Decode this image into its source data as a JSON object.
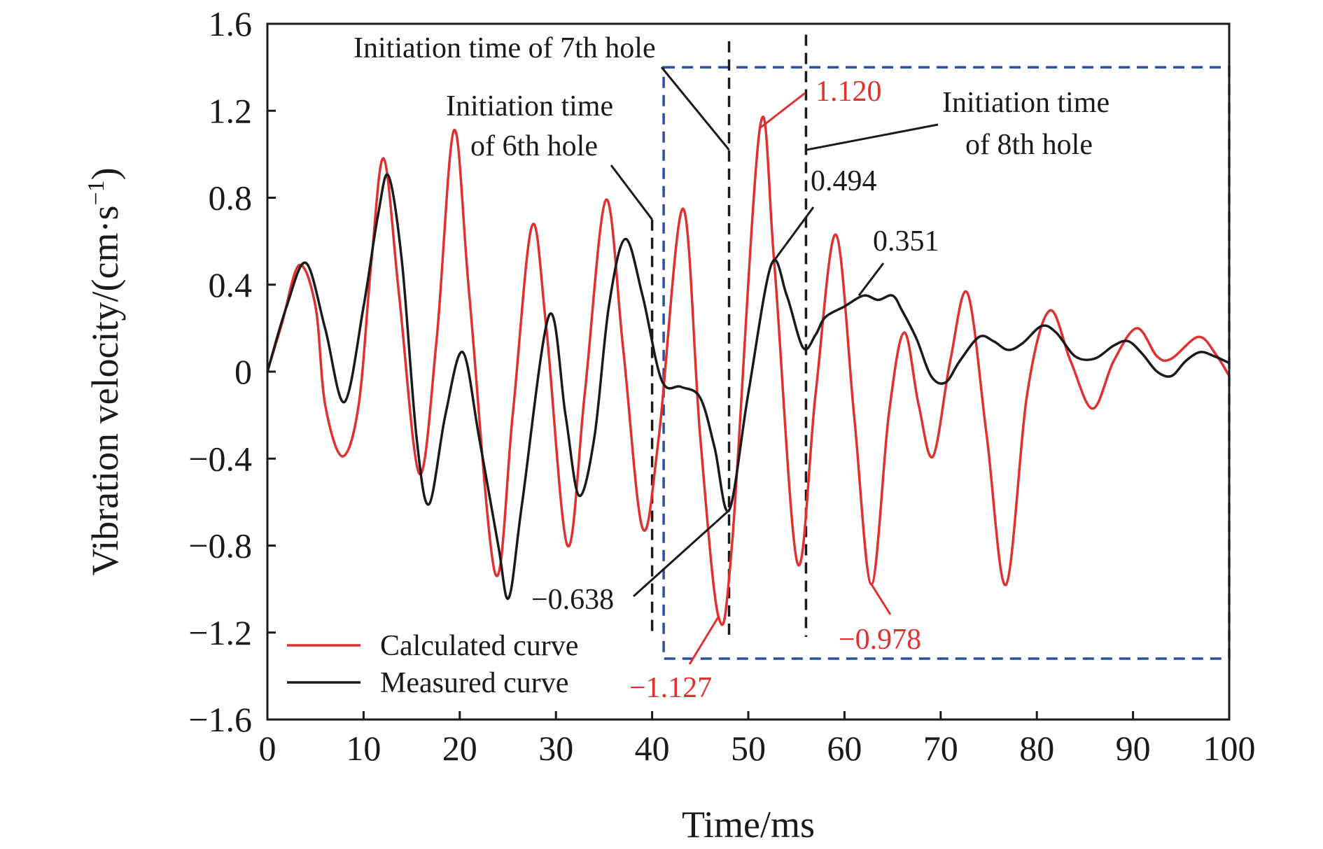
{
  "chart_data": {
    "type": "line",
    "xlabel": "Time/ms",
    "ylabel_main": "Vibration velocity/(cm·s",
    "ylabel_sup": "−1",
    "ylabel_close": ")",
    "xlim": [
      0,
      100
    ],
    "ylim": [
      -1.6,
      1.6
    ],
    "x_ticks": [
      0,
      10,
      20,
      30,
      40,
      50,
      60,
      70,
      80,
      90,
      100
    ],
    "x_tick_labels": [
      "0",
      "10",
      "20",
      "30",
      "40",
      "50",
      "60",
      "70",
      "80",
      "90",
      "100"
    ],
    "y_ticks": [
      1.6,
      1.2,
      0.8,
      0.4,
      0,
      -0.4,
      -0.8,
      -1.2,
      -1.6
    ],
    "y_tick_labels": [
      "1.6",
      "1.2",
      "0.8",
      "0.4",
      "0",
      "−0.4",
      "−0.8",
      "−1.2",
      "−1.6"
    ],
    "grid": false,
    "legend_position": "bottom-left",
    "series": [
      {
        "name": "Calculated curve",
        "color": "#e03030",
        "points": [
          [
            0,
            0
          ],
          [
            1.5,
            0.22
          ],
          [
            3.3,
            0.49
          ],
          [
            5,
            0.3
          ],
          [
            6,
            -0.15
          ],
          [
            7.8,
            -0.39
          ],
          [
            9.5,
            -0.15
          ],
          [
            10.8,
            0.5
          ],
          [
            12.1,
            0.98
          ],
          [
            13.7,
            0.35
          ],
          [
            15.8,
            -0.47
          ],
          [
            17.6,
            0.15
          ],
          [
            19.4,
            1.11
          ],
          [
            21,
            0.35
          ],
          [
            23.7,
            -0.93
          ],
          [
            25.5,
            -0.2
          ],
          [
            27.5,
            0.67
          ],
          [
            29,
            0.2
          ],
          [
            31.2,
            -0.8
          ],
          [
            33,
            -0.1
          ],
          [
            35.2,
            0.79
          ],
          [
            37,
            0.1
          ],
          [
            39,
            -0.72
          ],
          [
            40.7,
            -0.3
          ],
          [
            43.2,
            0.75
          ],
          [
            45,
            -0.3
          ],
          [
            46.9,
            -1.127
          ],
          [
            48.3,
            -0.8
          ],
          [
            51.2,
            1.12
          ],
          [
            52.7,
            0.5
          ],
          [
            55.1,
            -0.88
          ],
          [
            57,
            -0.1
          ],
          [
            59.1,
            0.63
          ],
          [
            61,
            -0.2
          ],
          [
            62.8,
            -0.978
          ],
          [
            64.6,
            -0.2
          ],
          [
            66.2,
            0.18
          ],
          [
            67.7,
            -0.15
          ],
          [
            69.2,
            -0.39
          ],
          [
            71,
            0.05
          ],
          [
            72.8,
            0.36
          ],
          [
            74.8,
            -0.3
          ],
          [
            76.8,
            -0.98
          ],
          [
            79,
            -0.1
          ],
          [
            81.3,
            0.28
          ],
          [
            83.5,
            0.05
          ],
          [
            85.8,
            -0.17
          ],
          [
            88,
            0.05
          ],
          [
            90.4,
            0.2
          ],
          [
            92.5,
            0.07
          ],
          [
            94,
            0.06
          ],
          [
            96.8,
            0.16
          ],
          [
            98.6,
            0.08
          ],
          [
            100,
            -0.02
          ]
        ]
      },
      {
        "name": "Measured curve",
        "color": "#1a1a1a",
        "points": [
          [
            0,
            0
          ],
          [
            2,
            0.3
          ],
          [
            4,
            0.5
          ],
          [
            6,
            0.2
          ],
          [
            8,
            -0.14
          ],
          [
            10,
            0.3
          ],
          [
            11.5,
            0.72
          ],
          [
            12.6,
            0.9
          ],
          [
            14,
            0.5
          ],
          [
            15.5,
            -0.3
          ],
          [
            16.8,
            -0.61
          ],
          [
            18.5,
            -0.2
          ],
          [
            20.3,
            0.09
          ],
          [
            22,
            -0.3
          ],
          [
            24,
            -0.8
          ],
          [
            25.1,
            -1.04
          ],
          [
            26.5,
            -0.6
          ],
          [
            29.3,
            0.26
          ],
          [
            31,
            -0.2
          ],
          [
            32.4,
            -0.57
          ],
          [
            34,
            -0.3
          ],
          [
            35.5,
            0.3
          ],
          [
            37.2,
            0.61
          ],
          [
            39,
            0.35
          ],
          [
            41,
            -0.04
          ],
          [
            43,
            -0.07
          ],
          [
            45,
            -0.12
          ],
          [
            46.5,
            -0.35
          ],
          [
            48,
            -0.638
          ],
          [
            50,
            -0.1
          ],
          [
            52.4,
            0.494
          ],
          [
            54,
            0.35
          ],
          [
            55.7,
            0.11
          ],
          [
            57,
            0.17
          ],
          [
            58,
            0.25
          ],
          [
            60,
            0.3
          ],
          [
            62,
            0.35
          ],
          [
            63.5,
            0.33
          ],
          [
            65,
            0.35
          ],
          [
            66,
            0.28
          ],
          [
            67.5,
            0.15
          ],
          [
            69,
            -0.02
          ],
          [
            70.5,
            -0.05
          ],
          [
            72,
            0.05
          ],
          [
            74,
            0.16
          ],
          [
            75.5,
            0.14
          ],
          [
            77,
            0.1
          ],
          [
            78.5,
            0.13
          ],
          [
            80.5,
            0.21
          ],
          [
            82,
            0.18
          ],
          [
            84,
            0.07
          ],
          [
            86,
            0.06
          ],
          [
            88,
            0.12
          ],
          [
            89.5,
            0.14
          ],
          [
            91,
            0.08
          ],
          [
            92.5,
            0.0
          ],
          [
            94,
            -0.02
          ],
          [
            95.5,
            0.05
          ],
          [
            97,
            0.09
          ],
          [
            98.5,
            0.07
          ],
          [
            100,
            0.04
          ]
        ]
      }
    ],
    "initiation_lines": [
      {
        "x": 40,
        "y_top": 0.7
      },
      {
        "x": 48,
        "y_top": 1.52
      },
      {
        "x": 56,
        "y_top": 1.55
      }
    ],
    "highlight_box": {
      "x0": 41.2,
      "x1": 100,
      "y0": -1.32,
      "y1": 1.4
    },
    "annotations": [
      {
        "text": "Initiation time of 7th hole",
        "color": "#1a1a1a"
      },
      {
        "text": "Initiation time",
        "color": "#1a1a1a"
      },
      {
        "text": "of 6th hole",
        "color": "#1a1a1a"
      },
      {
        "text": "Initiation time",
        "color": "#1a1a1a"
      },
      {
        "text": "of 8th hole",
        "color": "#1a1a1a"
      },
      {
        "text": "1.120",
        "color": "#e03030"
      },
      {
        "text": "0.494",
        "color": "#1a1a1a"
      },
      {
        "text": "0.351",
        "color": "#1a1a1a"
      },
      {
        "text": "−0.638",
        "color": "#1a1a1a"
      },
      {
        "text": "−0.978",
        "color": "#e03030"
      },
      {
        "text": "−1.127",
        "color": "#e03030"
      }
    ],
    "colors": {
      "calculated": "#e03030",
      "measured": "#1a1a1a",
      "box": "#2b4fa0",
      "dashed_lines": "#1a1a1a"
    }
  }
}
